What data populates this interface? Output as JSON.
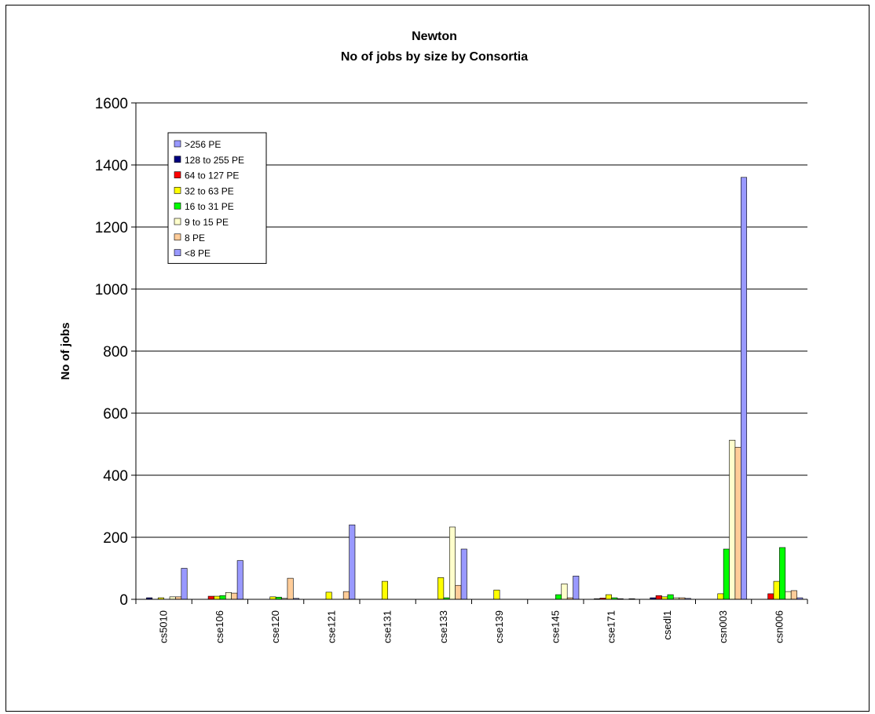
{
  "chart_data": {
    "type": "bar",
    "title": "Newton",
    "subtitle": "No of jobs by size by Consortia",
    "xlabel": "",
    "ylabel": "No of jobs",
    "ylim": [
      0,
      1600
    ],
    "yticks": [
      0,
      200,
      400,
      600,
      800,
      1000,
      1200,
      1400,
      1600
    ],
    "grid": true,
    "legend_position": "top-left",
    "categories": [
      "cs5010",
      "cse106",
      "cse120",
      "cse121",
      "cse131",
      "cse133",
      "cse139",
      "cse145",
      "cse171",
      "csedl1",
      "csn003",
      "csn006"
    ],
    "series": [
      {
        "name": ">256 PE",
        "color": "#9999ff",
        "values": [
          0,
          0,
          0,
          0,
          0,
          0,
          0,
          0,
          0,
          0,
          0,
          0
        ]
      },
      {
        "name": "128 to 255 PE",
        "color": "#000080",
        "values": [
          5,
          0,
          0,
          0,
          0,
          0,
          0,
          0,
          2,
          5,
          0,
          0
        ]
      },
      {
        "name": "64 to 127 PE",
        "color": "#ff0000",
        "values": [
          0,
          10,
          0,
          0,
          0,
          0,
          0,
          0,
          4,
          12,
          0,
          18
        ]
      },
      {
        "name": "32 to 63 PE",
        "color": "#ffff00",
        "values": [
          5,
          10,
          8,
          23,
          58,
          70,
          30,
          0,
          15,
          8,
          18,
          58
        ]
      },
      {
        "name": "16 to 31 PE",
        "color": "#00ff00",
        "values": [
          0,
          12,
          7,
          0,
          0,
          5,
          0,
          15,
          5,
          15,
          162,
          167
        ]
      },
      {
        "name": "9 to 15 PE",
        "color": "#ffffcc",
        "values": [
          8,
          22,
          3,
          0,
          0,
          233,
          0,
          50,
          2,
          5,
          513,
          25
        ]
      },
      {
        "name": "8 PE",
        "color": "#ffcc99",
        "values": [
          8,
          20,
          68,
          25,
          0,
          45,
          0,
          5,
          0,
          5,
          490,
          28
        ]
      },
      {
        "name": "<8 PE",
        "color": "#9999ff",
        "values": [
          100,
          125,
          3,
          240,
          0,
          162,
          0,
          75,
          2,
          3,
          1360,
          5
        ]
      }
    ]
  }
}
